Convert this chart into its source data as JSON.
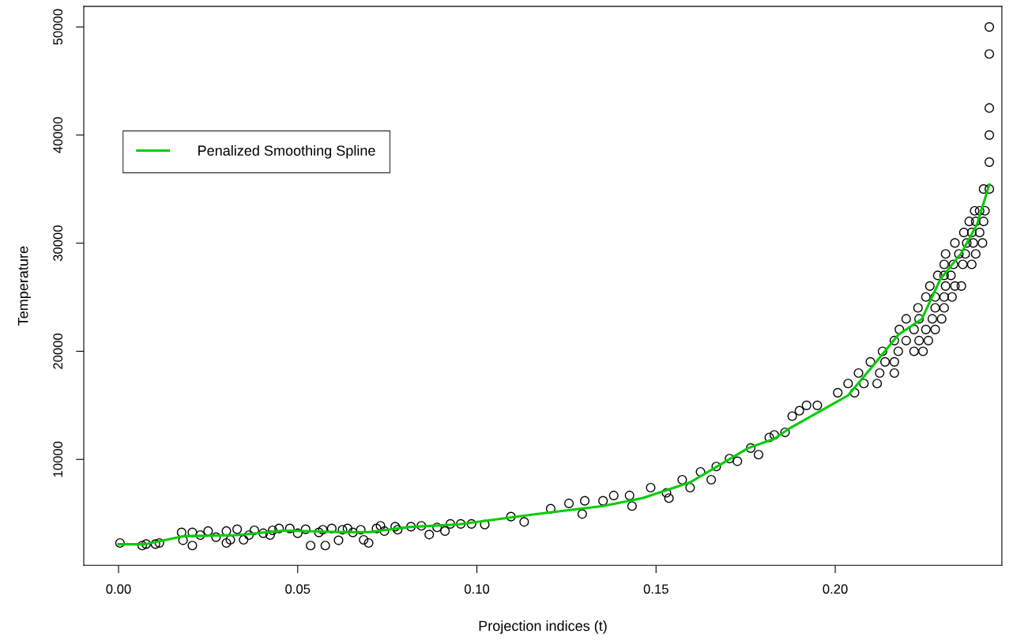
{
  "chart_data": {
    "type": "scatter",
    "xlabel": "Projection indices (t)",
    "ylabel": "Temperature",
    "xlim": [
      -0.0097,
      0.2465
    ],
    "ylim": [
      200,
      51900
    ],
    "xticks": [
      {
        "value": 0,
        "label": "0.00"
      },
      {
        "value": 0.05,
        "label": "0.05"
      },
      {
        "value": 0.1,
        "label": "0.10"
      },
      {
        "value": 0.15,
        "label": "0.15"
      },
      {
        "value": 0.2,
        "label": "0.20"
      }
    ],
    "yticks": [
      10000,
      20000,
      30000,
      40000,
      50000
    ],
    "grid": false,
    "legend": "top left",
    "series": [
      {
        "marker": "circle",
        "color": "#000000",
        "x": [
          0.0004,
          0.0066,
          0.0077,
          0.0103,
          0.0114,
          0.0176,
          0.018,
          0.0206,
          0.0206,
          0.0228,
          0.025,
          0.0272,
          0.0301,
          0.0301,
          0.0312,
          0.0331,
          0.0349,
          0.0364,
          0.0379,
          0.0404,
          0.0423,
          0.043,
          0.0448,
          0.0478,
          0.05,
          0.0522,
          0.0536,
          0.0559,
          0.057,
          0.0577,
          0.0595,
          0.0614,
          0.0625,
          0.0639,
          0.0654,
          0.0676,
          0.0684,
          0.0698,
          0.072,
          0.0731,
          0.0742,
          0.0772,
          0.0779,
          0.0816,
          0.0845,
          0.0867,
          0.0889,
          0.0911,
          0.0926,
          0.0955,
          0.0985,
          0.1022,
          0.1095,
          0.1132,
          0.1206,
          0.1257,
          0.1301,
          0.1294,
          0.1352,
          0.1382,
          0.1426,
          0.1433,
          0.1485,
          0.1529,
          0.1536,
          0.1573,
          0.1595,
          0.1624,
          0.1654,
          0.1668,
          0.1705,
          0.1727,
          0.1764,
          0.1786,
          0.1816,
          0.183,
          0.186,
          0.188,
          0.19,
          0.192,
          0.195,
          0.2007,
          0.2054,
          0.2036,
          0.208,
          0.2117,
          0.2065,
          0.2124,
          0.2165,
          0.2098,
          0.2139,
          0.2165,
          0.2132,
          0.2176,
          0.222,
          0.2245,
          0.2165,
          0.2198,
          0.2234,
          0.226,
          0.2179,
          0.222,
          0.2253,
          0.2279,
          0.2198,
          0.2234,
          0.2271,
          0.2297,
          0.2231,
          0.2279,
          0.2304,
          0.2253,
          0.2279,
          0.2304,
          0.2326,
          0.2264,
          0.2308,
          0.2334,
          0.2352,
          0.2286,
          0.2304,
          0.2323,
          0.2304,
          0.233,
          0.2356,
          0.2381,
          0.2308,
          0.2345,
          0.2363,
          0.2392,
          0.2334,
          0.2367,
          0.2385,
          0.2411,
          0.2359,
          0.2381,
          0.2403,
          0.2374,
          0.2392,
          0.2414,
          0.2389,
          0.2403,
          0.2418,
          0.2414,
          0.243,
          0.243,
          0.243,
          0.243,
          0.243,
          0.243
        ],
        "values": [
          2270,
          2030,
          2170,
          2170,
          2270,
          3250,
          2520,
          3250,
          2030,
          3000,
          3370,
          2810,
          3370,
          2270,
          2560,
          3540,
          2560,
          3000,
          3440,
          3170,
          3000,
          3440,
          3610,
          3610,
          3170,
          3540,
          2030,
          3250,
          3490,
          2030,
          3610,
          2520,
          3490,
          3610,
          3250,
          3490,
          2560,
          2270,
          3610,
          3860,
          3370,
          3780,
          3490,
          3780,
          3860,
          3050,
          3710,
          3370,
          4030,
          4030,
          4030,
          3980,
          4710,
          4220,
          5440,
          5930,
          6170,
          4950,
          6170,
          6660,
          6660,
          5690,
          7390,
          6910,
          6420,
          8120,
          7390,
          8850,
          8120,
          9340,
          10070,
          9830,
          11050,
          10440,
          12030,
          12270,
          12500,
          14000,
          14500,
          15000,
          15000,
          16170,
          16170,
          17020,
          17020,
          17020,
          17990,
          17990,
          17990,
          19020,
          19020,
          19020,
          20000,
          20000,
          20000,
          20000,
          20990,
          20990,
          20990,
          20990,
          22020,
          22020,
          22020,
          22020,
          23000,
          23000,
          23000,
          23000,
          24020,
          24020,
          24020,
          25020,
          25020,
          25020,
          25020,
          26040,
          26040,
          26040,
          26040,
          27020,
          27020,
          27020,
          28040,
          28040,
          28040,
          28040,
          29010,
          29010,
          29010,
          29010,
          30020,
          30020,
          30020,
          30020,
          30990,
          30990,
          30990,
          32010,
          32010,
          32010,
          32990,
          32990,
          32990,
          35010,
          35010,
          37500,
          40000,
          42500,
          47500,
          50000
        ]
      },
      {
        "type": "line",
        "name": "Penalized Smoothing Spline",
        "color": "#00cd00",
        "x": [
          0,
          0.0073,
          0.0183,
          0.033,
          0.0463,
          0.0624,
          0.0699,
          0.0809,
          0.0948,
          0.1169,
          0.1352,
          0.1462,
          0.1595,
          0.1683,
          0.1757,
          0.183,
          0.1874,
          0.2036,
          0.211,
          0.2176,
          0.2242,
          0.2293,
          0.2352,
          0.2396,
          0.243
        ],
        "values": [
          2150,
          2150,
          2900,
          3000,
          3420,
          3270,
          3270,
          3740,
          3980,
          4950,
          5690,
          6420,
          7880,
          9590,
          11050,
          11900,
          12900,
          15920,
          18850,
          21530,
          23000,
          26650,
          29090,
          31770,
          35430
        ]
      }
    ]
  }
}
